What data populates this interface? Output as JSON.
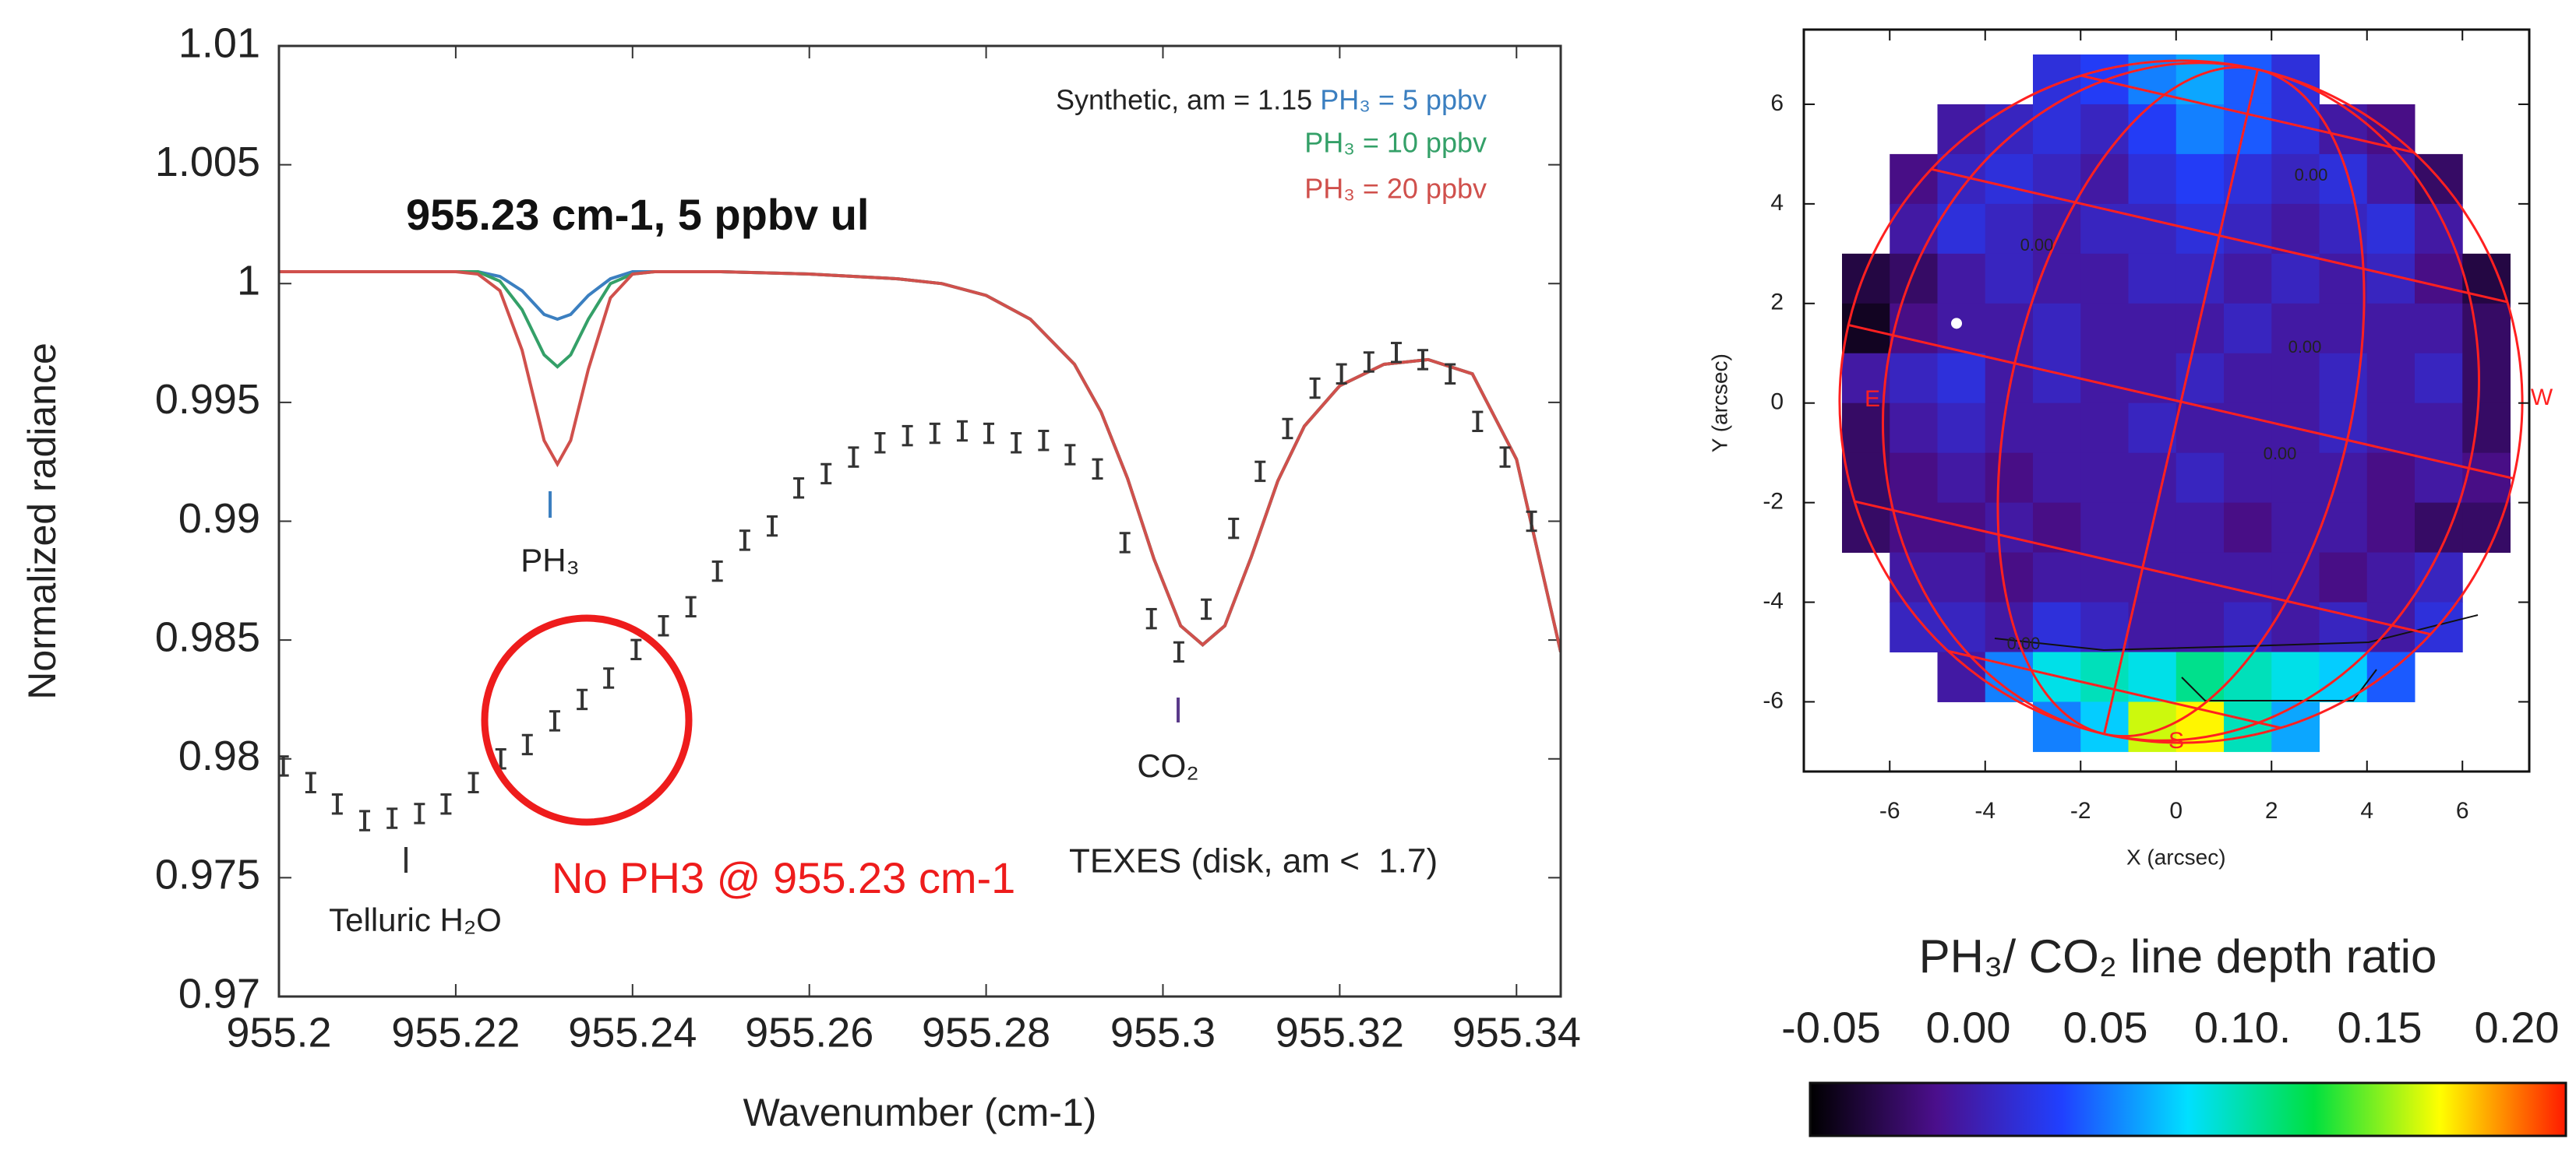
{
  "chart_data": [
    {
      "type": "line",
      "x_label": "Wavenumber (cm-1)",
      "y_label": "Normalized radiance",
      "xlim": [
        955.2,
        955.345
      ],
      "ylim": [
        0.97,
        1.01
      ],
      "xticks": [
        955.2,
        955.22,
        955.24,
        955.26,
        955.28,
        955.3,
        955.32,
        955.34
      ],
      "yticks": [
        0.97,
        0.975,
        0.98,
        0.985,
        0.99,
        0.995,
        1,
        1.005,
        1.01
      ],
      "legend_title": "Synthetic, am = 1.15",
      "x": [
        955.2,
        955.21,
        955.215,
        955.22,
        955.2225,
        955.225,
        955.2275,
        955.23,
        955.2315,
        955.233,
        955.235,
        955.2375,
        955.24,
        955.2425,
        955.245,
        955.25,
        955.26,
        955.27,
        955.275,
        955.28,
        955.285,
        955.29,
        955.293,
        955.296,
        955.299,
        955.302,
        955.3045,
        955.307,
        955.31,
        955.313,
        955.316,
        955.32,
        955.325,
        955.33,
        955.335,
        955.34,
        955.345
      ],
      "series": [
        {
          "name": "PH₃ = 5 ppbv",
          "color": "#3b7fc0",
          "values": [
            1.0005,
            1.0005,
            1.0005,
            1.0005,
            1.0005,
            1.0003,
            0.9997,
            0.9987,
            0.9985,
            0.9987,
            0.9995,
            1.0002,
            1.0005,
            1.0005,
            1.0005,
            1.0005,
            1.0004,
            1.0002,
            1.0,
            0.9995,
            0.9985,
            0.9966,
            0.9946,
            0.9918,
            0.9884,
            0.9856,
            0.9848,
            0.9856,
            0.9885,
            0.9917,
            0.994,
            0.9957,
            0.9966,
            0.9968,
            0.9962,
            0.9926,
            0.9845
          ]
        },
        {
          "name": "PH₃ = 10 ppbv",
          "color": "#34a068",
          "values": [
            1.0005,
            1.0005,
            1.0005,
            1.0005,
            1.0005,
            1.0001,
            0.9989,
            0.997,
            0.9965,
            0.997,
            0.9985,
            1.0,
            1.0004,
            1.0005,
            1.0005,
            1.0005,
            1.0004,
            1.0002,
            1.0,
            0.9995,
            0.9985,
            0.9966,
            0.9946,
            0.9918,
            0.9884,
            0.9856,
            0.9848,
            0.9856,
            0.9885,
            0.9917,
            0.994,
            0.9957,
            0.9966,
            0.9968,
            0.9962,
            0.9926,
            0.9845
          ]
        },
        {
          "name": "PH₃ = 20 ppbv",
          "color": "#d0504c",
          "values": [
            1.0005,
            1.0005,
            1.0005,
            1.0005,
            1.0004,
            0.9997,
            0.9972,
            0.9934,
            0.9924,
            0.9934,
            0.9964,
            0.9994,
            1.0004,
            1.0005,
            1.0005,
            1.0005,
            1.0004,
            1.0002,
            1.0,
            0.9995,
            0.9985,
            0.9966,
            0.9946,
            0.9918,
            0.9884,
            0.9856,
            0.9848,
            0.9856,
            0.9885,
            0.9917,
            0.994,
            0.9957,
            0.9966,
            0.9968,
            0.9962,
            0.9926,
            0.9845
          ]
        }
      ],
      "points": {
        "name": "TEXES (disk, am <  1.7)",
        "color": "#333333",
        "error": 0.0004,
        "x": [
          955.2005,
          955.2036,
          955.2066,
          955.2097,
          955.2128,
          955.2159,
          955.2189,
          955.222,
          955.2251,
          955.2281,
          955.2312,
          955.2343,
          955.2373,
          955.2404,
          955.2435,
          955.2466,
          955.2496,
          955.2527,
          955.2558,
          955.2588,
          955.2619,
          955.265,
          955.268,
          955.2711,
          955.2742,
          955.2773,
          955.2803,
          955.2834,
          955.2865,
          955.2895,
          955.2926,
          955.2957,
          955.2987,
          955.3018,
          955.3049,
          955.308,
          955.311,
          955.3141,
          955.3172,
          955.3202,
          955.3233,
          955.3264,
          955.3294,
          955.3325,
          955.3356,
          955.3387,
          955.3417
        ],
        "values": [
          0.9797,
          0.979,
          0.9781,
          0.9774,
          0.9775,
          0.9777,
          0.9781,
          0.979,
          0.98,
          0.9806,
          0.9816,
          0.9825,
          0.9834,
          0.9846,
          0.9856,
          0.9864,
          0.9879,
          0.9892,
          0.9898,
          0.9914,
          0.992,
          0.9927,
          0.9933,
          0.9936,
          0.9937,
          0.9938,
          0.9937,
          0.9933,
          0.9934,
          0.9928,
          0.9922,
          0.9891,
          0.9859,
          0.9845,
          0.9863,
          0.9897,
          0.9921,
          0.9939,
          0.9956,
          0.9962,
          0.9967,
          0.9971,
          0.9968,
          0.9962,
          0.9942,
          0.9927,
          0.99
        ]
      },
      "annotations": [
        "955.23 cm-1, 5 ppbv ul",
        "PH₃",
        "CO₂",
        "Telluric H₂O",
        "No PH3 @ 955.23 cm-1"
      ]
    },
    {
      "type": "heatmap",
      "x_label": "X (arcsec)",
      "y_label": "Y (arcsec)",
      "xlim": [
        -7.8,
        7.4
      ],
      "ylim": [
        -7.4,
        7.5
      ],
      "xticks": [
        -6,
        -4,
        -2,
        0,
        2,
        4,
        6
      ],
      "yticks": [
        -6,
        -4,
        -2,
        0,
        2,
        4,
        6
      ],
      "x": [
        -6.5,
        -5.5,
        -4.5,
        -3.5,
        -2.5,
        -1.5,
        -0.5,
        0.5,
        1.5,
        2.5,
        3.5,
        4.5,
        5.5,
        6.5
      ],
      "y": [
        6.5,
        5.5,
        4.5,
        3.5,
        2.5,
        1.5,
        0.5,
        -0.5,
        -1.5,
        -2.5,
        -3.5,
        -4.5,
        -5.5,
        -6.5
      ],
      "z": [
        [
          null,
          null,
          null,
          null,
          0.02,
          0.03,
          0.05,
          0.06,
          0.04,
          0.02,
          null,
          null,
          null,
          null
        ],
        [
          null,
          null,
          0.0,
          0.01,
          0.02,
          0.01,
          0.03,
          0.05,
          0.04,
          0.02,
          0.0,
          -0.01,
          null,
          null
        ],
        [
          null,
          -0.01,
          0.01,
          0.02,
          0.01,
          0.0,
          0.02,
          0.03,
          0.02,
          0.01,
          0.02,
          0.0,
          -0.02,
          null
        ],
        [
          null,
          0.0,
          0.02,
          0.01,
          0.0,
          0.01,
          0.01,
          0.02,
          0.01,
          0.0,
          0.01,
          0.02,
          0.0,
          null
        ],
        [
          -0.03,
          -0.02,
          0.0,
          0.01,
          0.0,
          0.0,
          0.01,
          0.01,
          0.0,
          0.01,
          0.0,
          0.01,
          -0.01,
          -0.03
        ],
        [
          -0.04,
          -0.01,
          0.0,
          0.0,
          0.01,
          0.0,
          0.0,
          0.0,
          0.01,
          0.0,
          0.0,
          0.0,
          0.0,
          -0.02
        ],
        [
          0.0,
          0.01,
          0.02,
          0.0,
          0.01,
          0.0,
          0.0,
          0.01,
          0.0,
          0.0,
          0.01,
          0.0,
          0.01,
          -0.02
        ],
        [
          -0.02,
          0.0,
          0.01,
          0.0,
          0.0,
          0.0,
          0.01,
          0.0,
          0.0,
          0.0,
          0.01,
          0.0,
          0.0,
          -0.02
        ],
        [
          -0.02,
          -0.01,
          0.0,
          -0.01,
          0.0,
          0.0,
          0.0,
          0.01,
          0.0,
          0.0,
          0.0,
          -0.01,
          0.0,
          -0.01
        ],
        [
          -0.02,
          -0.01,
          -0.01,
          0.0,
          -0.01,
          0.0,
          0.0,
          0.0,
          -0.01,
          0.0,
          0.0,
          -0.01,
          -0.02,
          -0.02
        ],
        [
          null,
          0.0,
          0.0,
          -0.01,
          0.0,
          0.0,
          0.0,
          0.0,
          0.0,
          0.0,
          -0.01,
          0.0,
          0.01,
          null
        ],
        [
          null,
          0.01,
          0.01,
          0.0,
          0.02,
          0.01,
          0.0,
          0.0,
          0.01,
          0.0,
          0.01,
          0.0,
          0.02,
          null
        ],
        [
          null,
          null,
          0.0,
          0.05,
          0.08,
          0.09,
          0.08,
          0.1,
          0.09,
          0.08,
          0.07,
          0.04,
          null,
          null
        ],
        [
          null,
          null,
          null,
          null,
          0.05,
          0.07,
          0.15,
          0.16,
          0.09,
          0.06,
          null,
          null,
          null,
          null
        ]
      ],
      "colorbar_title": "PH₃/ CO₂ line depth ratio",
      "zlim": [
        -0.05,
        0.2
      ],
      "zticks": [
        -0.05,
        {
          "value": 0,
          "label": "0.00"
        },
        0.05,
        {
          "value": 0.1,
          "label": "0.10."
        },
        0.15,
        {
          "value": 0.2,
          "label": "0.20"
        }
      ],
      "colorscale": [
        "#000000",
        "#4b0f8c",
        "#2040ff",
        "#00e0ff",
        "#00e040",
        "#ffff00",
        "#ff1a00"
      ],
      "contour_labels": [
        "0.00",
        "0.00",
        "0.00",
        "0.00",
        "0.00"
      ],
      "compass": [
        "E",
        "W",
        "S"
      ]
    }
  ]
}
